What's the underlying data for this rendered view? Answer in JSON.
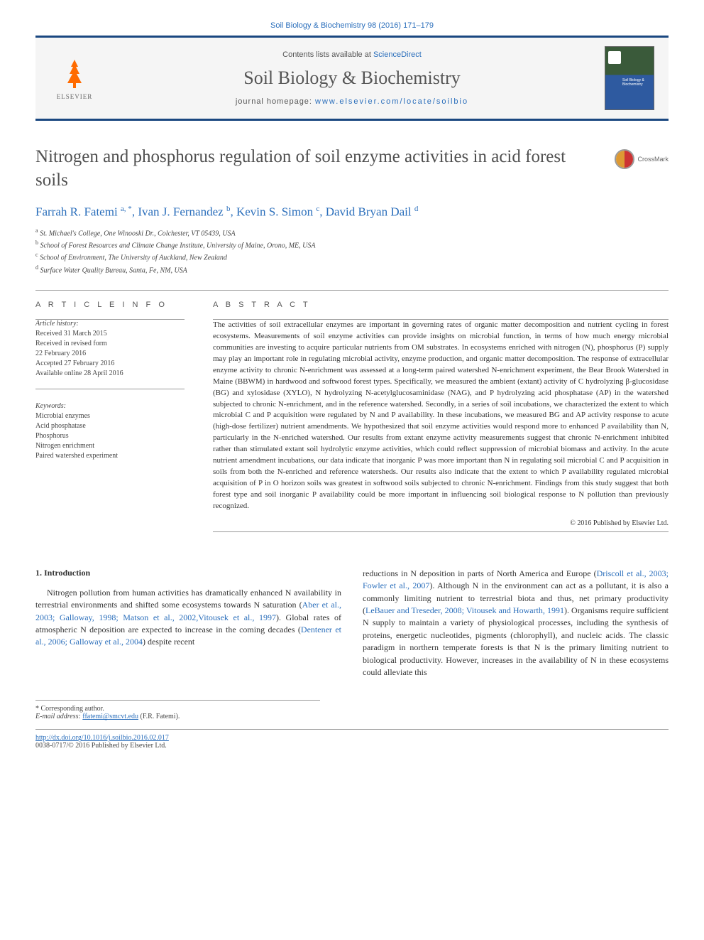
{
  "citation": "Soil Biology & Biochemistry 98 (2016) 171–179",
  "header": {
    "publisher": "ELSEVIER",
    "contents_prefix": "Contents lists available at ",
    "contents_link": "ScienceDirect",
    "journal": "Soil Biology & Biochemistry",
    "homepage_prefix": "journal homepage: ",
    "homepage_url": "www.elsevier.com/locate/soilbio"
  },
  "title": "Nitrogen and phosphorus regulation of soil enzyme activities in acid forest soils",
  "crossmark": "CrossMark",
  "authors_html": "Farrah R. Fatemi <sup>a, *</sup>, Ivan J. Fernandez <sup>b</sup>, Kevin S. Simon <sup>c</sup>, David Bryan Dail <sup>d</sup>",
  "affiliations": [
    {
      "sup": "a",
      "text": "St. Michael's College, One Winooski Dr., Colchester, VT 05439, USA"
    },
    {
      "sup": "b",
      "text": "School of Forest Resources and Climate Change Institute, University of Maine, Orono, ME, USA"
    },
    {
      "sup": "c",
      "text": "School of Environment, The University of Auckland, New Zealand"
    },
    {
      "sup": "d",
      "text": "Surface Water Quality Bureau, Santa, Fe, NM, USA"
    }
  ],
  "info": {
    "label": "A R T I C L E   I N F O",
    "history_label": "Article history:",
    "history": [
      "Received 31 March 2015",
      "Received in revised form",
      "22 February 2016",
      "Accepted 27 February 2016",
      "Available online 28 April 2016"
    ],
    "keywords_label": "Keywords:",
    "keywords": [
      "Microbial enzymes",
      "Acid phosphatase",
      "Phosphorus",
      "Nitrogen enrichment",
      "Paired watershed experiment"
    ]
  },
  "abstract": {
    "label": "A B S T R A C T",
    "text": "The activities of soil extracellular enzymes are important in governing rates of organic matter decomposition and nutrient cycling in forest ecosystems. Measurements of soil enzyme activities can provide insights on microbial function, in terms of how much energy microbial communities are investing to acquire particular nutrients from OM substrates. In ecosystems enriched with nitrogen (N), phosphorus (P) supply may play an important role in regulating microbial activity, enzyme production, and organic matter decomposition. The response of extracellular enzyme activity to chronic N-enrichment was assessed at a long-term paired watershed N-enrichment experiment, the Bear Brook Watershed in Maine (BBWM) in hardwood and softwood forest types. Specifically, we measured the ambient (extant) activity of C hydrolyzing β-glucosidase (BG) and xylosidase (XYLO), N hydrolyzing N-acetylglucosaminidase (NAG), and P hydrolyzing acid phosphatase (AP) in the watershed subjected to chronic N-enrichment, and in the reference watershed. Secondly, in a series of soil incubations, we characterized the extent to which microbial C and P acquisition were regulated by N and P availability. In these incubations, we measured BG and AP activity response to acute (high-dose fertilizer) nutrient amendments. We hypothesized that soil enzyme activities would respond more to enhanced P availability than N, particularly in the N-enriched watershed. Our results from extant enzyme activity measurements suggest that chronic N-enrichment inhibited rather than stimulated extant soil hydrolytic enzyme activities, which could reflect suppression of microbial biomass and activity. In the acute nutrient amendment incubations, our data indicate that inorganic P was more important than N in regulating soil microbial C and P acquisition in soils from both the N-enriched and reference watersheds. Our results also indicate that the extent to which P availability regulated microbial acquisition of P in O horizon soils was greatest in softwood soils subjected to chronic N-enrichment. Findings from this study suggest that both forest type and soil inorganic P availability could be more important in influencing soil biological response to N pollution than previously recognized.",
    "copyright": "© 2016 Published by Elsevier Ltd."
  },
  "body": {
    "heading": "1. Introduction",
    "col1_p1_pre": "Nitrogen pollution from human activities has dramatically enhanced N availability in terrestrial environments and shifted some ecosystems towards N saturation (",
    "col1_p1_ref1": "Aber et al., 2003; Galloway, 1998; Matson et al., 2002,Vitousek et al., 1997",
    "col1_p1_mid": "). Global rates of atmospheric N deposition are expected to increase in the coming decades (",
    "col1_p1_ref2": "Dentener et al., 2006; Galloway et al., 2004",
    "col1_p1_post": ") despite recent",
    "col2_p1_pre": "reductions in N deposition in parts of North America and Europe (",
    "col2_p1_ref1": "Driscoll et al., 2003; Fowler et al., 2007",
    "col2_p1_mid1": "). Although N in the environment can act as a pollutant, it is also a commonly limiting nutrient to terrestrial biota and thus, net primary productivity (",
    "col2_p1_ref2": "LeBauer and Treseder, 2008; Vitousek and Howarth, 1991",
    "col2_p1_post": "). Organisms require sufficient N supply to maintain a variety of physiological processes, including the synthesis of proteins, energetic nucleotides, pigments (chlorophyll), and nucleic acids. The classic paradigm in northern temperate forests is that N is the primary limiting nutrient to biological productivity. However, increases in the availability of N in these ecosystems could alleviate this"
  },
  "footnotes": {
    "corresponding": "* Corresponding author.",
    "email_label": "E-mail address: ",
    "email": "ffatemi@smcvt.edu",
    "email_suffix": " (F.R. Fatemi)."
  },
  "bottom": {
    "doi": "http://dx.doi.org/10.1016/j.soilbio.2016.02.017",
    "issn_line": "0038-0717/© 2016 Published by Elsevier Ltd."
  },
  "colors": {
    "link": "#2a6ebb",
    "rule": "#1a4780",
    "text": "#333333",
    "elsevier": "#ff6b00"
  }
}
